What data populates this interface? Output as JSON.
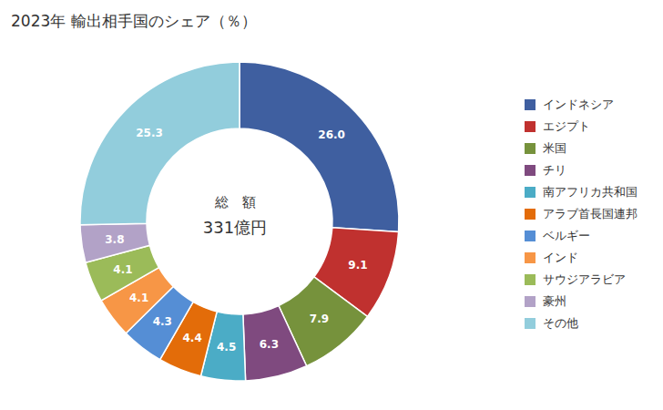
{
  "chart_data": {
    "type": "pie",
    "title": "2023年 輸出相手国のシェア（％）",
    "categories": [
      "インドネシア",
      "エジプト",
      "米国",
      "チリ",
      "南アフリカ共和国",
      "アラブ首長国連邦",
      "ベルギー",
      "インド",
      "サウジアラビア",
      "豪州",
      "その他"
    ],
    "values": [
      26.0,
      9.1,
      7.9,
      6.3,
      4.5,
      4.4,
      4.3,
      4.1,
      4.1,
      3.8,
      25.3
    ],
    "value_labels": [
      "26.0",
      "9.1",
      "7.9",
      "6.3",
      "4.5",
      "4.4",
      "4.3",
      "4.1",
      "4.1",
      "3.8",
      "25.3"
    ],
    "colors": [
      "#3f5fa0",
      "#c0312f",
      "#76923c",
      "#7f4a7f",
      "#4bacc6",
      "#e36c09",
      "#558ed5",
      "#f79646",
      "#9bbb59",
      "#b2a2c7",
      "#92cddc"
    ],
    "data_labels": true,
    "legend": "right",
    "annotations": [
      "総　額",
      "331億円"
    ]
  }
}
